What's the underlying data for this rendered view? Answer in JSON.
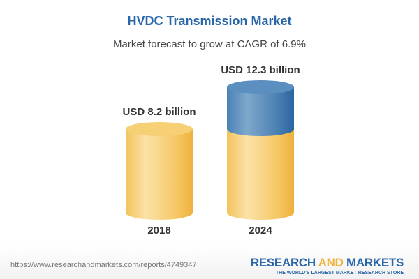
{
  "chart_data": {
    "type": "bar",
    "title": "HVDC Transmission Market",
    "subtitle": "Market forecast to grow at CAGR of 6.9%",
    "categories": [
      "2018",
      "2024"
    ],
    "values": [
      8.2,
      12.3
    ],
    "data_labels": [
      "USD 8.2 billion",
      "USD 12.3 billion"
    ],
    "unit": "USD billion",
    "style": "3d-cylinder",
    "colors": {
      "base": "#f2c35a",
      "growth": "#3f7bb0",
      "title": "#2a67a8"
    }
  },
  "footer": {
    "url": "https://www.researchandmarkets.com/reports/4749347",
    "logo": {
      "part1": "RESEARCH ",
      "part2": "AND",
      "part3": " MARKETS",
      "tagline": "THE WORLD'S LARGEST MARKET RESEARCH STORE"
    }
  }
}
